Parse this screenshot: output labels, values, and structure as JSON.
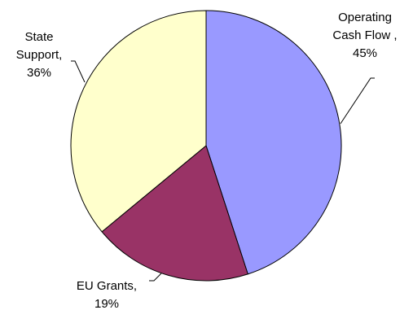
{
  "chart_data": {
    "type": "pie",
    "title": "",
    "start_angle_deg": 0,
    "direction": "clockwise",
    "slices": [
      {
        "name": "Operating Cash Flow",
        "value": 45,
        "label_lines": [
          "Operating",
          "Cash Flow ,",
          "45%"
        ],
        "color": "#9999FF"
      },
      {
        "name": "EU Grants",
        "value": 19,
        "label_lines": [
          "EU Grants,",
          "19%"
        ],
        "color": "#993366"
      },
      {
        "name": "State Support",
        "value": 36,
        "label_lines": [
          "State",
          "Support,",
          "36%"
        ],
        "color": "#FFFFCC"
      }
    ]
  }
}
